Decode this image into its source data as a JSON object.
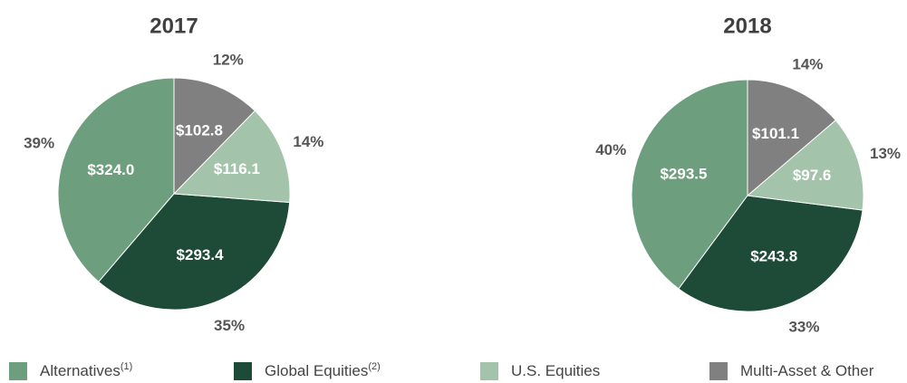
{
  "chart_data": [
    {
      "type": "pie",
      "title": "2017",
      "categories": [
        "Alternatives",
        "Global Equities",
        "U.S. Equities",
        "Multi-Asset & Other"
      ],
      "category_notes": [
        "(1)",
        "(2)",
        null,
        null
      ],
      "values": [
        324.0,
        293.4,
        116.1,
        102.8
      ],
      "value_labels": [
        "$324.0",
        "$293.4",
        "$116.1",
        "$102.8"
      ],
      "percentages": [
        39,
        35,
        14,
        12
      ],
      "percentage_labels": [
        "39%",
        "35%",
        "14%",
        "12%"
      ],
      "colors": [
        "#6d9e7e",
        "#1e4a38",
        "#a3c4ab",
        "#808080"
      ]
    },
    {
      "type": "pie",
      "title": "2018",
      "categories": [
        "Alternatives",
        "Global Equities",
        "U.S. Equities",
        "Multi-Asset & Other"
      ],
      "values": [
        293.5,
        243.8,
        97.6,
        101.1
      ],
      "value_labels": [
        "$293.5",
        "$243.8",
        "$97.6",
        "$101.1"
      ],
      "percentages": [
        40,
        33,
        13,
        14
      ],
      "percentage_labels": [
        "40%",
        "33%",
        "13%",
        "14%"
      ],
      "colors": [
        "#6d9e7e",
        "#1e4a38",
        "#a3c4ab",
        "#808080"
      ]
    }
  ]
}
